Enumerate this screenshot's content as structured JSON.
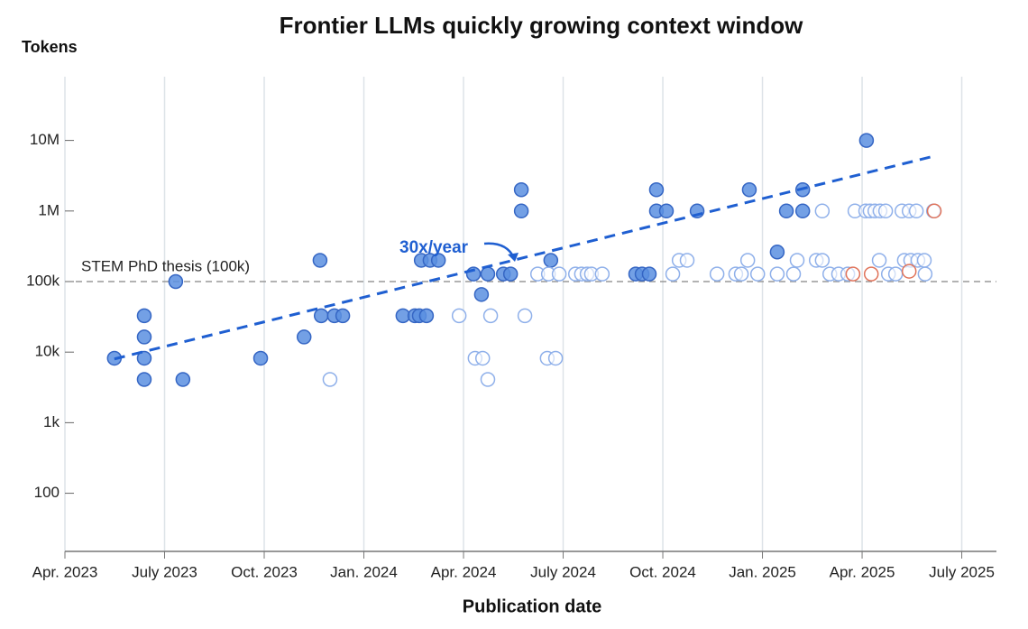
{
  "chart_data": {
    "type": "scatter",
    "title": "Frontier LLMs quickly growing context window",
    "y_label": "Tokens",
    "x_label": "Publication date",
    "y_scale": "log",
    "grid": "x",
    "xlim": [
      2023.25,
      2025.587
    ],
    "ylim": [
      15,
      80000000
    ],
    "xticks": [
      {
        "value": 2023.25,
        "label": "Apr. 2023"
      },
      {
        "value": 2023.5,
        "label": "July 2023"
      },
      {
        "value": 2023.75,
        "label": "Oct. 2023"
      },
      {
        "value": 2024.0,
        "label": "Jan. 2024"
      },
      {
        "value": 2024.25,
        "label": "Apr. 2024"
      },
      {
        "value": 2024.5,
        "label": "July 2024"
      },
      {
        "value": 2024.75,
        "label": "Oct. 2024"
      },
      {
        "value": 2025.0,
        "label": "Jan. 2025"
      },
      {
        "value": 2025.25,
        "label": "Apr. 2025"
      },
      {
        "value": 2025.5,
        "label": "July 2025"
      }
    ],
    "yticks": [
      100,
      {
        "value": 1000,
        "label": "1k"
      },
      {
        "value": 10000,
        "label": "10k"
      },
      {
        "value": 100000,
        "label": "100k"
      },
      {
        "value": 1000000,
        "label": "1M"
      },
      {
        "value": 10000000,
        "label": "10M"
      }
    ],
    "reference": {
      "value": 100000,
      "label": "STEM PhD thesis (100k)"
    },
    "trend": {
      "x": [
        2023.374,
        2025.431
      ],
      "y": [
        8000,
        6000000
      ],
      "color": "#1f5fd1",
      "label": "30x/year"
    },
    "series": [
      {
        "marker": "filled",
        "color": "#5b8fe0",
        "x": [
          2023.374,
          2023.449,
          2023.449,
          2023.449,
          2023.449,
          2023.528,
          2023.546,
          2023.741,
          2023.85,
          2023.89,
          2023.893,
          2023.926,
          2023.947,
          2024.098,
          2024.128,
          2024.139,
          2024.157,
          2024.144,
          2024.166,
          2024.187,
          2024.275,
          2024.295,
          2024.311,
          2024.35,
          2024.368,
          2024.395,
          2024.395,
          2024.469,
          2024.682,
          2024.698,
          2024.716,
          2024.734,
          2024.734,
          2024.759,
          2024.836,
          2024.967,
          2025.037,
          2025.06,
          2025.101,
          2025.101,
          2025.261
        ],
        "values": [
          8192,
          32768,
          16384,
          8192,
          4096,
          100000,
          4096,
          8192,
          16384,
          200000,
          32768,
          32768,
          32768,
          32768,
          32768,
          32768,
          32768,
          200000,
          200000,
          200000,
          128000,
          65536,
          128000,
          128000,
          128000,
          2000000,
          1000000,
          200000,
          128000,
          128000,
          128000,
          2000000,
          1000000,
          1000000,
          1000000,
          2000000,
          262144,
          1000000,
          1000000,
          2000000,
          10000000
        ]
      },
      {
        "marker": "open",
        "color": "#8fb0ea",
        "x": [
          2023.915,
          2024.239,
          2024.279,
          2024.298,
          2024.311,
          2024.318,
          2024.404,
          2024.436,
          2024.46,
          2024.463,
          2024.481,
          2024.49,
          2024.531,
          2024.546,
          2024.56,
          2024.571,
          2024.598,
          2024.775,
          2024.791,
          2024.811,
          2024.886,
          2024.933,
          2024.947,
          2024.963,
          2024.988,
          2025.037,
          2025.078,
          2025.087,
          2025.135,
          2025.15,
          2025.15,
          2025.169,
          2025.191,
          2025.214,
          2025.232,
          2025.259,
          2025.27,
          2025.282,
          2025.295,
          2025.309,
          2025.293,
          2025.316,
          2025.334,
          2025.35,
          2025.356,
          2025.368,
          2025.372,
          2025.386,
          2025.39,
          2025.406,
          2025.408,
          2025.429
        ],
        "values": [
          4096,
          32768,
          8192,
          8192,
          4096,
          32768,
          32768,
          128000,
          8192,
          128000,
          8192,
          128000,
          128000,
          128000,
          128000,
          128000,
          128000,
          128000,
          200000,
          200000,
          128000,
          128000,
          128000,
          200000,
          128000,
          128000,
          128000,
          200000,
          200000,
          200000,
          1000000,
          128000,
          128000,
          128000,
          1000000,
          1000000,
          1000000,
          1000000,
          1000000,
          1000000,
          200000,
          128000,
          128000,
          1000000,
          200000,
          1000000,
          200000,
          1000000,
          200000,
          200000,
          128000,
          1000000
        ]
      },
      {
        "marker": "open",
        "color": "#e0735a",
        "x": [
          2025.227,
          2025.273,
          2025.368,
          2025.431
        ],
        "values": [
          128000,
          128000,
          140000,
          1000000
        ]
      }
    ]
  }
}
